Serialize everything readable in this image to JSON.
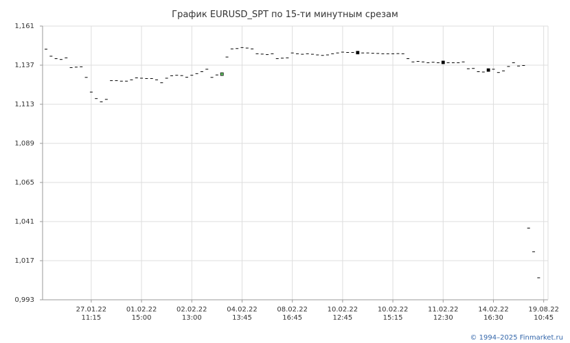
{
  "chart_data": {
    "type": "candlestick",
    "title": "График EURUSD_SPT по 15-ти минутным срезам",
    "xlabel": "",
    "ylabel": "",
    "ylim": [
      0.993,
      1.161
    ],
    "yticks": [
      "1,161",
      "1,137",
      "1,113",
      "1,089",
      "1,065",
      "1,041",
      "1,017",
      "0,993"
    ],
    "ytick_values": [
      1.161,
      1.137,
      1.113,
      1.089,
      1.065,
      1.041,
      1.017,
      0.993
    ],
    "xticks": [
      {
        "index": 9,
        "date": "27.01.22",
        "time": "11:15"
      },
      {
        "index": 19,
        "date": "01.02.22",
        "time": "15:00"
      },
      {
        "index": 29,
        "date": "02.02.22",
        "time": "13:00"
      },
      {
        "index": 39,
        "date": "04.02.22",
        "time": "13:45"
      },
      {
        "index": 49,
        "date": "08.02.22",
        "time": "16:45"
      },
      {
        "index": 59,
        "date": "10.02.22",
        "time": "12:45"
      },
      {
        "index": 69,
        "date": "10.02.22",
        "time": "15:15"
      },
      {
        "index": 79,
        "date": "11.02.22",
        "time": "12:30"
      },
      {
        "index": 89,
        "date": "14.02.22",
        "time": "16:30"
      },
      {
        "index": 99,
        "date": "19.08.22",
        "time": "10:45"
      }
    ],
    "grid": true,
    "colors": {
      "up": "#66cc66",
      "down": "#000000",
      "grid": "#dddddd",
      "axis": "#999999"
    },
    "values": [
      1.1468,
      1.1425,
      1.141,
      1.1405,
      1.1415,
      1.1355,
      1.1358,
      1.136,
      1.1295,
      1.1205,
      1.1165,
      1.1145,
      1.116,
      1.1275,
      1.1275,
      1.1272,
      1.1272,
      1.128,
      1.1292,
      1.129,
      1.1288,
      1.1288,
      1.128,
      1.1262,
      1.129,
      1.1305,
      1.1308,
      1.1306,
      1.1296,
      1.1308,
      1.1318,
      1.133,
      1.1345,
      1.1295,
      1.131,
      1.1315,
      1.142,
      1.147,
      1.1472,
      1.1478,
      1.1475,
      1.147,
      1.144,
      1.1438,
      1.1435,
      1.144,
      1.141,
      1.1413,
      1.1415,
      1.1445,
      1.144,
      1.1437,
      1.144,
      1.1437,
      1.1433,
      1.143,
      1.1433,
      1.144,
      1.1445,
      1.145,
      1.1448,
      1.1448,
      1.1447,
      1.1445,
      1.1445,
      1.1443,
      1.1442,
      1.144,
      1.144,
      1.144,
      1.1441,
      1.144,
      1.141,
      1.139,
      1.1393,
      1.139,
      1.1385,
      1.1388,
      1.1385,
      1.1387,
      1.1385,
      1.1385,
      1.1385,
      1.139,
      1.1348,
      1.135,
      1.133,
      1.1328,
      1.134,
      1.1345,
      1.1325,
      1.1335,
      1.1362,
      1.1385,
      1.1365,
      1.1368,
      1.037,
      1.0225,
      1.0065
    ],
    "marked_boxes": [
      {
        "index": 35,
        "value": 1.1315,
        "direction": "up"
      },
      {
        "index": 62,
        "value": 1.1447,
        "direction": "down"
      },
      {
        "index": 79,
        "value": 1.1387,
        "direction": "down"
      },
      {
        "index": 88,
        "value": 1.134,
        "direction": "down"
      }
    ]
  },
  "footer": {
    "copyright": "© 1994–2025 Finmarket.ru"
  }
}
